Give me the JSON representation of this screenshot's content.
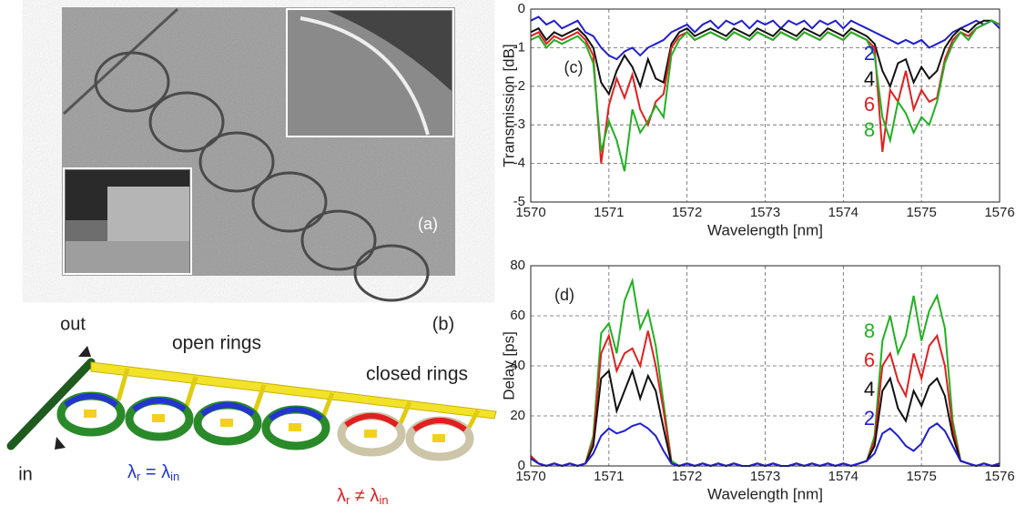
{
  "panels": {
    "a": {
      "label": "(a)"
    },
    "b": {
      "label": "(b)",
      "out": "out",
      "in": "in",
      "open": "open rings",
      "closed": "closed rings",
      "match": {
        "a": "λ",
        "a_sub": "r",
        "op": " = λ",
        "b_sub": "in"
      },
      "mismatch": {
        "a": "λ",
        "a_sub": "r",
        "op": " ≠ λ",
        "b_sub": "in"
      }
    }
  },
  "chart_data": [
    {
      "type": "line",
      "label": "(c)",
      "xlabel": "Wavelength [nm]",
      "ylabel": "Transmission [dB]",
      "xlim": [
        1570,
        1576
      ],
      "xticks": [
        1570,
        1571,
        1572,
        1573,
        1574,
        1575,
        1576
      ],
      "ylim": [
        -5,
        0
      ],
      "yticks": [
        0,
        -1,
        -2,
        -3,
        -4,
        -5
      ],
      "grid": true,
      "x": [
        1570.0,
        1570.1,
        1570.2,
        1570.3,
        1570.4,
        1570.5,
        1570.6,
        1570.7,
        1570.8,
        1570.9,
        1571.0,
        1571.1,
        1571.2,
        1571.3,
        1571.4,
        1571.5,
        1571.6,
        1571.7,
        1571.8,
        1571.9,
        1572.0,
        1572.1,
        1572.2,
        1572.3,
        1572.4,
        1572.5,
        1572.6,
        1572.7,
        1572.8,
        1572.9,
        1573.0,
        1573.1,
        1573.2,
        1573.3,
        1573.4,
        1573.5,
        1573.6,
        1573.7,
        1573.8,
        1573.9,
        1574.0,
        1574.1,
        1574.2,
        1574.3,
        1574.4,
        1574.5,
        1574.6,
        1574.7,
        1574.8,
        1574.9,
        1575.0,
        1575.1,
        1575.2,
        1575.3,
        1575.4,
        1575.5,
        1575.6,
        1575.7,
        1575.8,
        1575.9,
        1576.0
      ],
      "series": [
        {
          "name": "2",
          "color": "#1f1fd0",
          "values": [
            -0.3,
            -0.2,
            -0.4,
            -0.3,
            -0.5,
            -0.4,
            -0.3,
            -0.6,
            -0.7,
            -1.0,
            -1.2,
            -1.3,
            -1.1,
            -1.0,
            -1.2,
            -1.0,
            -0.9,
            -0.8,
            -0.6,
            -0.5,
            -0.4,
            -0.6,
            -0.4,
            -0.3,
            -0.5,
            -0.3,
            -0.4,
            -0.3,
            -0.5,
            -0.3,
            -0.4,
            -0.3,
            -0.5,
            -0.3,
            -0.4,
            -0.3,
            -0.5,
            -0.3,
            -0.4,
            -0.3,
            -0.5,
            -0.3,
            -0.4,
            -0.5,
            -0.6,
            -0.7,
            -0.8,
            -0.9,
            -0.8,
            -0.9,
            -0.8,
            -1.0,
            -0.9,
            -0.8,
            -0.6,
            -0.5,
            -0.4,
            -0.3,
            -0.4,
            -0.3,
            -0.5
          ]
        },
        {
          "name": "4",
          "color": "#111111",
          "values": [
            -0.6,
            -0.5,
            -0.8,
            -0.6,
            -0.7,
            -0.6,
            -0.5,
            -0.7,
            -1.0,
            -1.9,
            -2.2,
            -1.6,
            -1.2,
            -1.5,
            -2.0,
            -1.3,
            -1.8,
            -1.9,
            -0.9,
            -0.6,
            -0.5,
            -0.7,
            -0.6,
            -0.5,
            -0.6,
            -0.7,
            -0.5,
            -0.6,
            -0.7,
            -0.5,
            -0.6,
            -0.7,
            -0.5,
            -0.6,
            -0.7,
            -0.5,
            -0.6,
            -0.7,
            -0.5,
            -0.6,
            -0.7,
            -0.5,
            -0.6,
            -0.7,
            -0.9,
            -1.6,
            -2.0,
            -1.4,
            -1.3,
            -1.9,
            -1.5,
            -1.8,
            -1.6,
            -1.0,
            -0.7,
            -0.5,
            -0.6,
            -0.4,
            -0.3,
            -0.3,
            -0.4
          ]
        },
        {
          "name": "6",
          "color": "#e02020",
          "values": [
            -0.7,
            -0.6,
            -0.9,
            -0.7,
            -0.8,
            -0.7,
            -0.6,
            -0.8,
            -1.2,
            -4.0,
            -2.5,
            -1.8,
            -2.3,
            -1.7,
            -2.6,
            -3.0,
            -2.4,
            -2.2,
            -1.0,
            -0.7,
            -0.6,
            -0.8,
            -0.7,
            -0.6,
            -0.7,
            -0.8,
            -0.6,
            -0.7,
            -0.8,
            -0.6,
            -0.7,
            -0.8,
            -0.6,
            -0.7,
            -0.8,
            -0.6,
            -0.7,
            -0.8,
            -0.6,
            -0.7,
            -0.8,
            -0.6,
            -0.7,
            -0.8,
            -1.0,
            -3.7,
            -2.1,
            -2.4,
            -1.6,
            -2.6,
            -2.1,
            -2.4,
            -2.3,
            -1.3,
            -0.8,
            -0.6,
            -0.7,
            -0.5,
            -0.4,
            -0.3,
            -0.4
          ]
        },
        {
          "name": "8",
          "color": "#22b022",
          "values": [
            -0.8,
            -0.7,
            -1.0,
            -0.8,
            -0.9,
            -0.8,
            -0.7,
            -0.9,
            -1.4,
            -3.7,
            -2.9,
            -3.4,
            -4.2,
            -2.6,
            -3.2,
            -2.9,
            -2.5,
            -2.8,
            -1.2,
            -0.8,
            -0.6,
            -0.8,
            -0.7,
            -0.6,
            -0.7,
            -0.8,
            -0.6,
            -0.7,
            -0.8,
            -0.6,
            -0.7,
            -0.8,
            -0.6,
            -0.7,
            -0.8,
            -0.6,
            -0.7,
            -0.8,
            -0.6,
            -0.7,
            -0.8,
            -0.6,
            -0.7,
            -0.8,
            -1.2,
            -2.8,
            -3.4,
            -2.4,
            -2.7,
            -3.2,
            -2.8,
            -3.0,
            -2.4,
            -1.4,
            -0.9,
            -0.6,
            -0.8,
            -0.5,
            -0.4,
            -0.3,
            -0.4
          ]
        }
      ]
    },
    {
      "type": "line",
      "label": "(d)",
      "xlabel": "Wavelength [nm]",
      "ylabel": "Delay [ps]",
      "xlim": [
        1570,
        1576
      ],
      "xticks": [
        1570,
        1571,
        1572,
        1573,
        1574,
        1575,
        1576
      ],
      "ylim": [
        0,
        80
      ],
      "yticks": [
        0,
        20,
        40,
        60,
        80
      ],
      "grid": true,
      "x": [
        1570.0,
        1570.1,
        1570.2,
        1570.3,
        1570.4,
        1570.5,
        1570.6,
        1570.7,
        1570.8,
        1570.9,
        1571.0,
        1571.1,
        1571.2,
        1571.3,
        1571.4,
        1571.5,
        1571.6,
        1571.7,
        1571.8,
        1571.9,
        1572.0,
        1572.1,
        1572.2,
        1572.3,
        1572.4,
        1572.5,
        1572.6,
        1572.7,
        1572.8,
        1572.9,
        1573.0,
        1573.1,
        1573.2,
        1573.3,
        1573.4,
        1573.5,
        1573.6,
        1573.7,
        1573.8,
        1573.9,
        1574.0,
        1574.1,
        1574.2,
        1574.3,
        1574.4,
        1574.5,
        1574.6,
        1574.7,
        1574.8,
        1574.9,
        1575.0,
        1575.1,
        1575.2,
        1575.3,
        1575.4,
        1575.5,
        1575.6,
        1575.7,
        1575.8,
        1575.9,
        1576.0
      ],
      "series": [
        {
          "name": "8",
          "color": "#22b022",
          "values": [
            4,
            1,
            0,
            1,
            0,
            1,
            0,
            1,
            12,
            53,
            57,
            45,
            66,
            74,
            55,
            62,
            48,
            25,
            2,
            0,
            1,
            0,
            1,
            0,
            1,
            0,
            1,
            0,
            0,
            1,
            0,
            1,
            0,
            0,
            1,
            0,
            1,
            0,
            1,
            0,
            1,
            0,
            1,
            2,
            12,
            50,
            60,
            45,
            52,
            68,
            50,
            62,
            68,
            55,
            18,
            2,
            1,
            0,
            1,
            0,
            1
          ]
        },
        {
          "name": "6",
          "color": "#e02020",
          "values": [
            4,
            1,
            0,
            1,
            0,
            1,
            0,
            1,
            10,
            45,
            52,
            38,
            45,
            47,
            40,
            54,
            40,
            22,
            1,
            0,
            1,
            0,
            1,
            0,
            1,
            0,
            1,
            0,
            0,
            1,
            0,
            1,
            0,
            0,
            1,
            0,
            1,
            0,
            1,
            0,
            1,
            0,
            1,
            2,
            10,
            40,
            45,
            34,
            28,
            45,
            35,
            48,
            52,
            40,
            15,
            2,
            1,
            0,
            1,
            0,
            1
          ]
        },
        {
          "name": "4",
          "color": "#111111",
          "values": [
            3,
            1,
            0,
            1,
            0,
            1,
            0,
            1,
            8,
            35,
            38,
            22,
            30,
            38,
            27,
            36,
            30,
            15,
            1,
            0,
            1,
            0,
            1,
            0,
            1,
            0,
            1,
            0,
            0,
            1,
            0,
            1,
            0,
            0,
            1,
            0,
            1,
            0,
            1,
            0,
            1,
            0,
            1,
            2,
            8,
            30,
            35,
            23,
            18,
            30,
            24,
            32,
            35,
            28,
            12,
            2,
            1,
            0,
            1,
            0,
            0
          ]
        },
        {
          "name": "2",
          "color": "#1f1fd0",
          "values": [
            3,
            1,
            0,
            1,
            0,
            1,
            0,
            1,
            5,
            12,
            15,
            13,
            14,
            16,
            17,
            15,
            12,
            6,
            1,
            0,
            1,
            0,
            1,
            0,
            1,
            0,
            1,
            0,
            0,
            1,
            0,
            1,
            0,
            0,
            1,
            0,
            1,
            0,
            1,
            0,
            1,
            0,
            1,
            2,
            5,
            13,
            15,
            12,
            8,
            6,
            9,
            15,
            17,
            14,
            8,
            2,
            1,
            0,
            1,
            0,
            1
          ]
        }
      ]
    }
  ]
}
